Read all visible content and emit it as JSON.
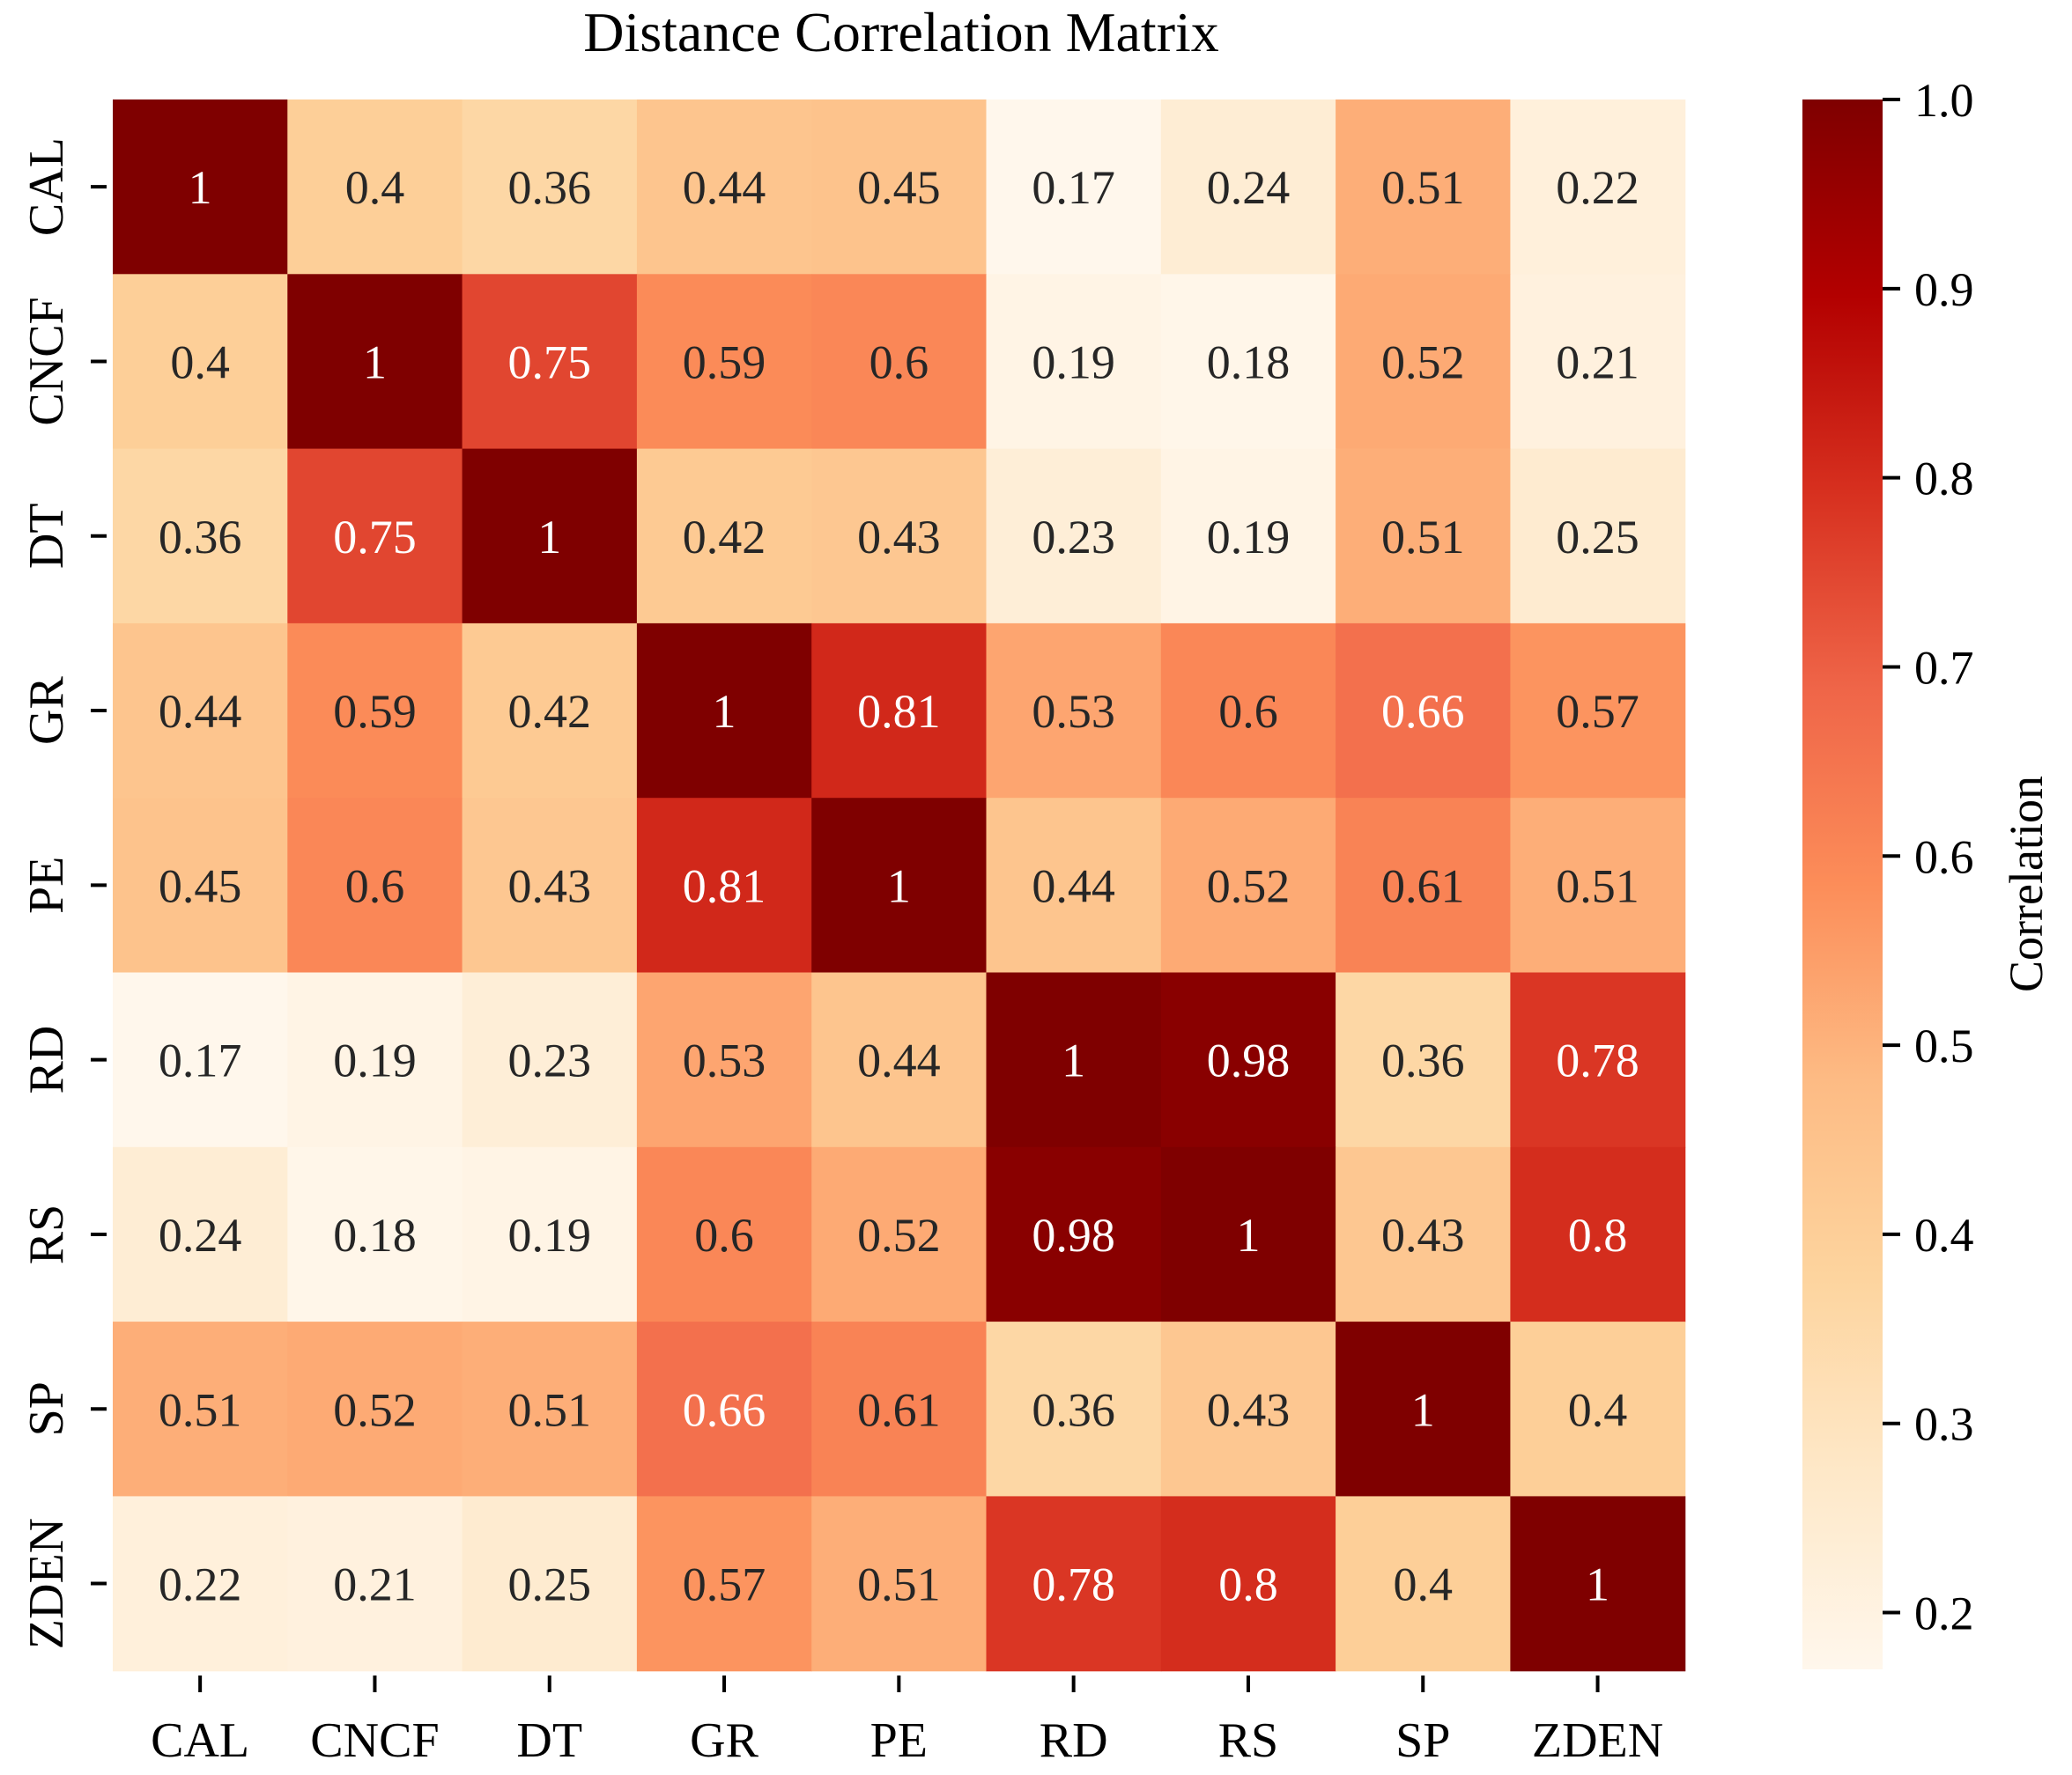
{
  "chart_data": {
    "type": "heatmap",
    "title": "Distance Correlation Matrix",
    "xlabel": "",
    "ylabel": "",
    "x_categories": [
      "CAL",
      "CNCF",
      "DT",
      "GR",
      "PE",
      "RD",
      "RS",
      "SP",
      "ZDEN"
    ],
    "y_categories": [
      "CAL",
      "CNCF",
      "DT",
      "GR",
      "PE",
      "RD",
      "RS",
      "SP",
      "ZDEN"
    ],
    "values": [
      [
        1,
        0.4,
        0.36,
        0.44,
        0.45,
        0.17,
        0.24,
        0.51,
        0.22
      ],
      [
        0.4,
        1,
        0.75,
        0.59,
        0.6,
        0.19,
        0.18,
        0.52,
        0.21
      ],
      [
        0.36,
        0.75,
        1,
        0.42,
        0.43,
        0.23,
        0.19,
        0.51,
        0.25
      ],
      [
        0.44,
        0.59,
        0.42,
        1,
        0.81,
        0.53,
        0.6,
        0.66,
        0.57
      ],
      [
        0.45,
        0.6,
        0.43,
        0.81,
        1,
        0.44,
        0.52,
        0.61,
        0.51
      ],
      [
        0.17,
        0.19,
        0.23,
        0.53,
        0.44,
        1,
        0.98,
        0.36,
        0.78
      ],
      [
        0.24,
        0.18,
        0.19,
        0.6,
        0.52,
        0.98,
        1,
        0.43,
        0.8
      ],
      [
        0.51,
        0.52,
        0.51,
        0.66,
        0.61,
        0.36,
        0.43,
        1,
        0.4
      ],
      [
        0.22,
        0.21,
        0.25,
        0.57,
        0.51,
        0.78,
        0.8,
        0.4,
        1
      ]
    ],
    "value_labels": [
      [
        "1",
        "0.4",
        "0.36",
        "0.44",
        "0.45",
        "0.17",
        "0.24",
        "0.51",
        "0.22"
      ],
      [
        "0.4",
        "1",
        "0.75",
        "0.59",
        "0.6",
        "0.19",
        "0.18",
        "0.52",
        "0.21"
      ],
      [
        "0.36",
        "0.75",
        "1",
        "0.42",
        "0.43",
        "0.23",
        "0.19",
        "0.51",
        "0.25"
      ],
      [
        "0.44",
        "0.59",
        "0.42",
        "1",
        "0.81",
        "0.53",
        "0.6",
        "0.66",
        "0.57"
      ],
      [
        "0.45",
        "0.6",
        "0.43",
        "0.81",
        "1",
        "0.44",
        "0.52",
        "0.61",
        "0.51"
      ],
      [
        "0.17",
        "0.19",
        "0.23",
        "0.53",
        "0.44",
        "1",
        "0.98",
        "0.36",
        "0.78"
      ],
      [
        "0.24",
        "0.18",
        "0.19",
        "0.6",
        "0.52",
        "0.98",
        "1",
        "0.43",
        "0.8"
      ],
      [
        "0.51",
        "0.52",
        "0.51",
        "0.66",
        "0.61",
        "0.36",
        "0.43",
        "1",
        "0.4"
      ],
      [
        "0.22",
        "0.21",
        "0.25",
        "0.57",
        "0.51",
        "0.78",
        "0.8",
        "0.4",
        "1"
      ]
    ],
    "colorbar": {
      "label": "Correlation",
      "vmin": 0.17,
      "vmax": 1.0,
      "ticks": [
        0.2,
        0.3,
        0.4,
        0.5,
        0.6,
        0.7,
        0.8,
        0.9,
        1.0
      ],
      "tick_labels": [
        "0.2",
        "0.3",
        "0.4",
        "0.5",
        "0.6",
        "0.7",
        "0.8",
        "0.9",
        "1.0"
      ],
      "colormap": "OrRd",
      "colors": [
        "#fff7ec",
        "#fee8c8",
        "#fdd49e",
        "#fdbb84",
        "#fc8d59",
        "#ef6548",
        "#d7301f",
        "#b30000",
        "#7f0000"
      ]
    }
  }
}
